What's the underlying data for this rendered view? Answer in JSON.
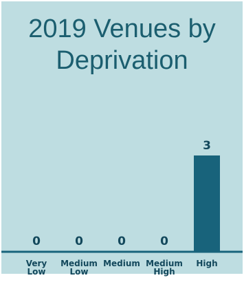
{
  "chart_data": {
    "type": "bar",
    "title_lines": [
      "2019 Venues by",
      "Deprivation"
    ],
    "categories": [
      [
        "Very",
        "Low"
      ],
      [
        "Medium",
        "Low"
      ],
      [
        "Medium"
      ],
      [
        "Medium",
        "High"
      ],
      [
        "High"
      ]
    ],
    "values": [
      0,
      0,
      0,
      0,
      3
    ],
    "ylim": [
      0,
      3
    ],
    "grid": false,
    "legend": "none"
  },
  "colors": {
    "background": "#bedde1",
    "bar": "#18637b",
    "text": "#13485c",
    "title": "#1b5e6f"
  }
}
